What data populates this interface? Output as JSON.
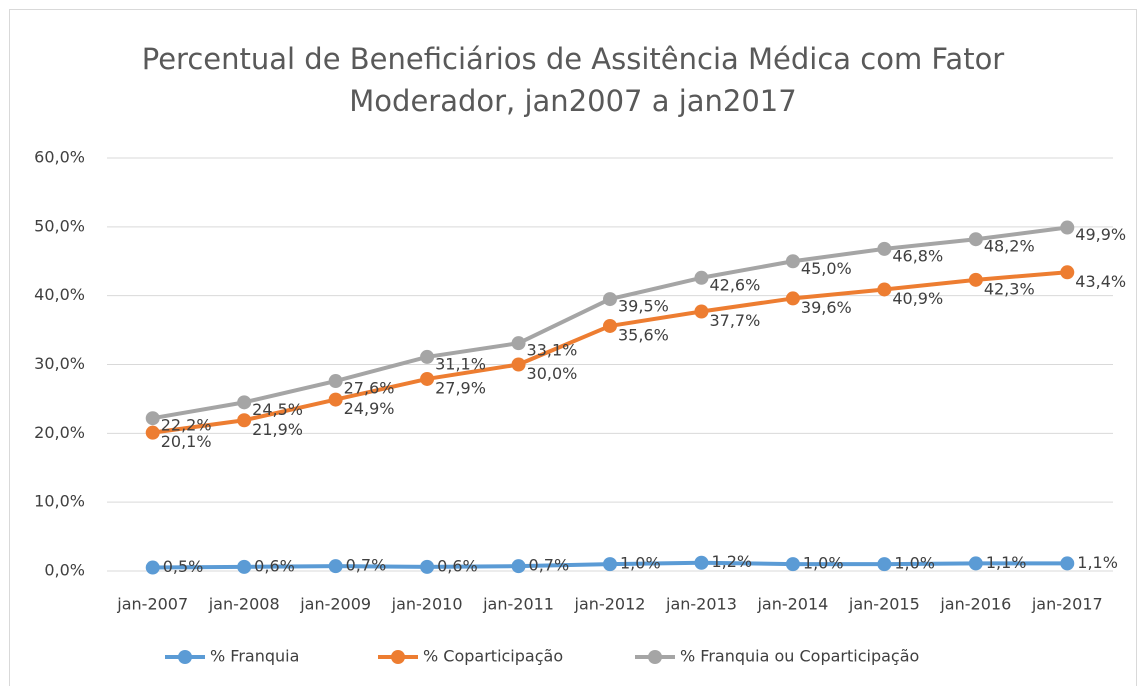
{
  "chart_data": {
    "type": "line",
    "title": "Percentual de Beneficiários de Assitência Médica com Fator Moderador, jan2007 a jan2017",
    "categories": [
      "jan-2007",
      "jan-2008",
      "jan-2009",
      "jan-2010",
      "jan-2011",
      "jan-2012",
      "jan-2013",
      "jan-2014",
      "jan-2015",
      "jan-2016",
      "jan-2017"
    ],
    "series": [
      {
        "name": "% Franquia",
        "color": "#5b9bd5",
        "values": [
          0.5,
          0.6,
          0.7,
          0.6,
          0.7,
          1.0,
          1.2,
          1.0,
          1.0,
          1.1,
          1.1
        ],
        "value_labels": [
          "0,5%",
          "0,6%",
          "0,7%",
          "0,6%",
          "0,7%",
          "1,0%",
          "1,2%",
          "1,0%",
          "1,0%",
          "1,1%",
          "1,1%"
        ]
      },
      {
        "name": "% Coparticipação",
        "color": "#ed7d31",
        "values": [
          20.1,
          21.9,
          24.9,
          27.9,
          30.0,
          35.6,
          37.7,
          39.6,
          40.9,
          42.3,
          43.4
        ],
        "value_labels": [
          "20,1%",
          "21,9%",
          "24,9%",
          "27,9%",
          "30,0%",
          "35,6%",
          "37,7%",
          "39,6%",
          "40,9%",
          "42,3%",
          "43,4%"
        ]
      },
      {
        "name": "% Franquia ou Coparticipação",
        "color": "#a5a5a5",
        "values": [
          22.2,
          24.5,
          27.6,
          31.1,
          33.1,
          39.5,
          42.6,
          45.0,
          46.8,
          48.2,
          49.9
        ],
        "value_labels": [
          "22,2%",
          "24,5%",
          "27,6%",
          "31,1%",
          "33,1%",
          "39,5%",
          "42,6%",
          "45,0%",
          "46,8%",
          "48,2%",
          "49,9%"
        ]
      }
    ],
    "ylim": [
      0,
      60
    ],
    "yticks": [
      {
        "value": 0,
        "label": "0,0%"
      },
      {
        "value": 10,
        "label": "10,0%"
      },
      {
        "value": 20,
        "label": "20,0%"
      },
      {
        "value": 30,
        "label": "30,0%"
      },
      {
        "value": 40,
        "label": "40,0%"
      },
      {
        "value": 50,
        "label": "50,0%"
      },
      {
        "value": 60,
        "label": "60,0%"
      }
    ],
    "grid": true,
    "legend": "bottom"
  }
}
